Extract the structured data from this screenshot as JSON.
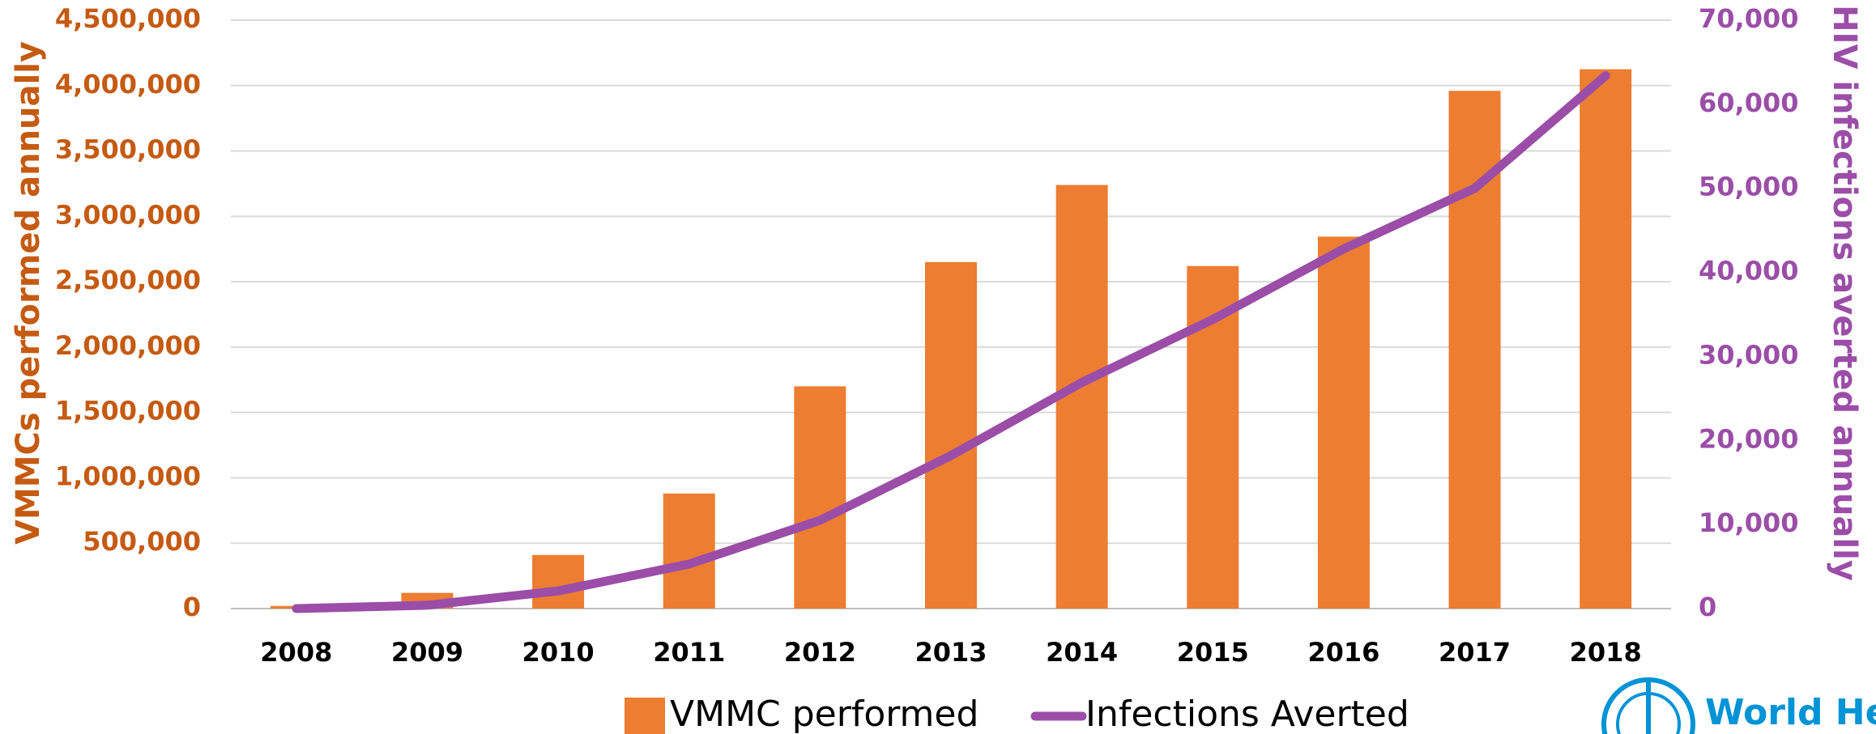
{
  "chart_data": {
    "type": "bar",
    "categories": [
      "2008",
      "2009",
      "2010",
      "2011",
      "2012",
      "2013",
      "2014",
      "2015",
      "2016",
      "2017",
      "2018"
    ],
    "series": [
      {
        "name": "VMMC performed",
        "type": "bar",
        "color": "#ed7d31",
        "values": [
          20000,
          120000,
          410000,
          880000,
          1700000,
          2650000,
          3240000,
          2620000,
          2845000,
          3960000,
          4125000
        ]
      },
      {
        "name": "Infections Averted",
        "type": "line",
        "axis": "y2",
        "color": "#9b4da8",
        "values": [
          0,
          400,
          2100,
          5300,
          10500,
          18200,
          26900,
          34400,
          42800,
          50000,
          63400
        ]
      }
    ],
    "y_label": "VMMCs performed annually",
    "y2_label": "HIV infections averted annually",
    "ylim": [
      0,
      4500000
    ],
    "yticks": [
      0,
      {
        "value": 500000,
        "label": "500,000"
      },
      {
        "value": 1000000,
        "label": "1,000,000"
      },
      {
        "value": 1500000,
        "label": "1,500,000"
      },
      {
        "value": 2000000,
        "label": "2,000,000"
      },
      {
        "value": 2500000,
        "label": "2,500,000"
      },
      {
        "value": 3000000,
        "label": "3,000,000"
      },
      {
        "value": 3500000,
        "label": "3,500,000"
      },
      {
        "value": 4000000,
        "label": "4,000,000"
      },
      {
        "value": 4500000,
        "label": "4,500,000"
      }
    ],
    "y2lim": [
      0,
      70000
    ],
    "y2ticks": [
      0,
      {
        "value": 10000,
        "label": "10,000"
      },
      {
        "value": 20000,
        "label": "20,000"
      },
      {
        "value": 30000,
        "label": "30,000"
      },
      {
        "value": 40000,
        "label": "40,000"
      },
      {
        "value": 50000,
        "label": "50,000"
      },
      {
        "value": 60000,
        "label": "60,000"
      },
      {
        "value": 70000,
        "label": "70,000"
      }
    ],
    "grid": true,
    "legend": "bottom",
    "logo_text": "World Healt"
  }
}
